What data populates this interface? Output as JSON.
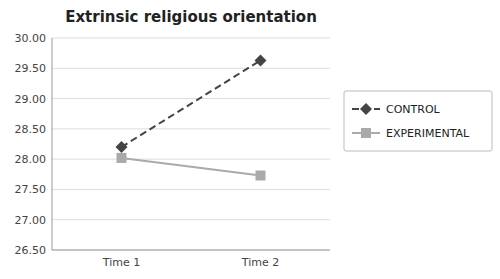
{
  "chart_data": {
    "type": "line",
    "title": "Extrinsic religious orientation",
    "categories": [
      "Time 1",
      "Time 2"
    ],
    "series": [
      {
        "name": "CONTROL",
        "color": "#444444",
        "values": [
          28.2,
          29.63
        ],
        "marker": "diamond",
        "line_style": "dashed"
      },
      {
        "name": "EXPERIMENTAL",
        "color": "#aaaaaa",
        "values": [
          28.02,
          27.73
        ],
        "marker": "square",
        "line_style": "solid"
      }
    ],
    "ylim": [
      26.5,
      30
    ],
    "yticks": [
      {
        "value": 26.5,
        "label": "26.50"
      },
      {
        "value": 27,
        "label": "27.00"
      },
      {
        "value": 27.5,
        "label": "27.50"
      },
      {
        "value": 28,
        "label": "28.00"
      },
      {
        "value": 28.5,
        "label": "28.50"
      },
      {
        "value": 29,
        "label": "29.00"
      },
      {
        "value": 29.5,
        "label": "29.50"
      },
      {
        "value": 30,
        "label": "30.00"
      }
    ],
    "grid": true,
    "legend": "right"
  }
}
